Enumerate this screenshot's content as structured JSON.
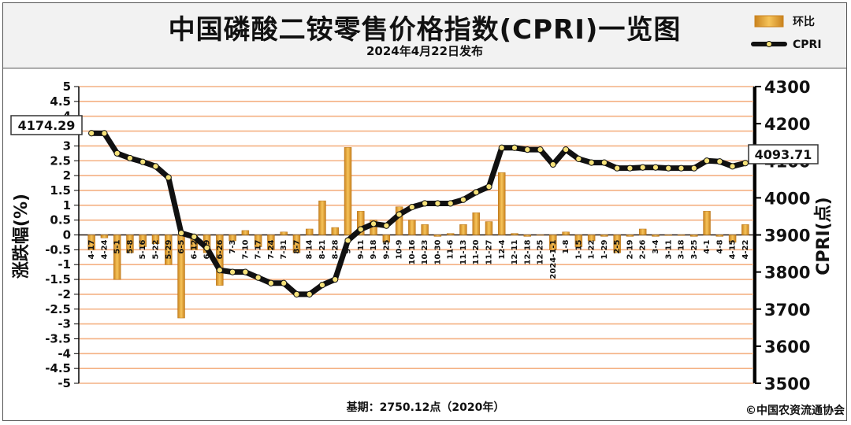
{
  "header": {
    "title": "中国磷酸二铵零售价格指数(CPRI)一览图",
    "subtitle": "2024年4月22日发布"
  },
  "footer": {
    "base": "基期：2750.12点（2020年）",
    "copyright": "©中国农资流通协会"
  },
  "callouts": {
    "start": "4174.29",
    "end": "4093.71"
  },
  "colors": {
    "bar": "#e8a13a",
    "line": "#111111",
    "grid": "#f4b183",
    "plot_bg": "#ffffff"
  },
  "chart_data": {
    "type": "bar+line",
    "categories": [
      "4-17",
      "4-24",
      "5-1",
      "5-8",
      "5-16",
      "5-22",
      "5-29",
      "6-5",
      "6-12",
      "6-19",
      "6-26",
      "7-3",
      "7-10",
      "7-17",
      "7-24",
      "7-31",
      "8-7",
      "8-14",
      "8-21",
      "8-28",
      "9-4",
      "9-11",
      "9-18",
      "9-25",
      "10-9",
      "10-16",
      "10-23",
      "10-30",
      "11-6",
      "11-13",
      "11-20",
      "11-27",
      "12-4",
      "12-11",
      "12-18",
      "12-25",
      "2024-1-1",
      "1-8",
      "1-15",
      "1-22",
      "1-29",
      "2-5",
      "2-19",
      "2-26",
      "3-4",
      "3-11",
      "3-18",
      "3-25",
      "4-1",
      "4-8",
      "4-15",
      "4-22"
    ],
    "series": [
      {
        "name": "环比",
        "axis": "left",
        "type": "bar",
        "values": [
          -0.5,
          -0.1,
          -1.5,
          -0.6,
          -0.4,
          -0.3,
          -1.0,
          -2.8,
          -0.5,
          -0.6,
          -1.7,
          -0.2,
          0.15,
          -0.4,
          -0.5,
          0.1,
          -0.6,
          0.2,
          1.15,
          0.25,
          2.95,
          0.8,
          0.5,
          -0.25,
          0.95,
          0.5,
          0.35,
          -0.05,
          0.05,
          0.35,
          0.75,
          0.45,
          2.1,
          0.05,
          -0.05,
          0.0,
          -0.5,
          0.1,
          -0.4,
          -0.2,
          -0.05,
          -0.6,
          -0.05,
          0.2,
          -0.05,
          -0.02,
          -0.02,
          -0.05,
          0.8,
          -0.05,
          -0.25,
          0.35
        ]
      },
      {
        "name": "CPRI",
        "axis": "right",
        "type": "line",
        "values": [
          4174.29,
          4174,
          4120,
          4107,
          4097,
          4085,
          4055,
          3905,
          3895,
          3865,
          3805,
          3800,
          3800,
          3785,
          3770,
          3770,
          3740,
          3740,
          3765,
          3780,
          3885,
          3915,
          3930,
          3925,
          3955,
          3975,
          3985,
          3985,
          3985,
          3995,
          4015,
          4030,
          4135,
          4135,
          4130,
          4130,
          4090,
          4130,
          4105,
          4095,
          4095,
          4080,
          4080,
          4082,
          4082,
          4080,
          4080,
          4080,
          4100,
          4098,
          4085,
          4093.71
        ]
      }
    ],
    "y_left": {
      "label": "涨跌幅(%)",
      "min": -5,
      "max": 5,
      "step": 0.5,
      "ticks": [
        "5",
        "4.5",
        "4",
        "3.5",
        "3",
        "2.5",
        "2",
        "1.5",
        "1",
        "0.5",
        "0",
        "-0.5",
        "-1",
        "-1.5",
        "-2",
        "-2.5",
        "-3",
        "-3.5",
        "-4",
        "-4.5",
        "-5"
      ]
    },
    "y_right": {
      "label": "CPRI(点)",
      "min": 3500,
      "max": 4300,
      "step": 100,
      "ticks": [
        "4300",
        "4200",
        "4100",
        "4000",
        "3900",
        "3800",
        "3700",
        "3600",
        "3500"
      ]
    },
    "legend": {
      "placement": "top-right",
      "items": [
        "环比",
        "CPRI"
      ]
    },
    "grid": true
  }
}
